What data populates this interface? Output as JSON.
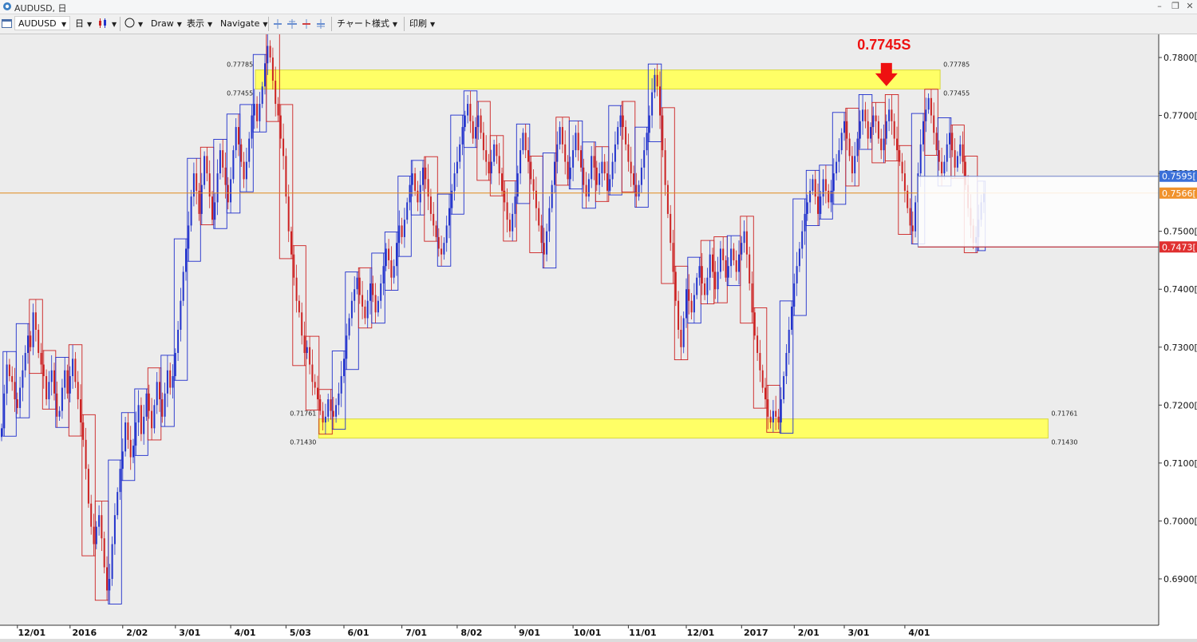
{
  "window": {
    "title": "AUDUSD, 日"
  },
  "toolbar": {
    "symbol": "AUDUSD",
    "timeframe": "日",
    "draw_label": "Draw",
    "view_label": "表示",
    "navigate_label": "Navigate",
    "chart_style_label": "チャート様式",
    "print_label": "印刷"
  },
  "chart_data": {
    "type": "candlestick",
    "symbol": "AUDUSD",
    "ylim": [
      0.682,
      0.784
    ],
    "y_ticks": [
      "0.6900[0",
      "0.7000[0",
      "0.7100[0",
      "0.7200[0",
      "0.7300[0",
      "0.7400[0",
      "0.7500[0",
      "0.7600[0",
      "0.7700[0",
      "0.7800[0"
    ],
    "y_tick_values": [
      0.69,
      0.7,
      0.71,
      0.72,
      0.73,
      0.74,
      0.75,
      0.76,
      0.77,
      0.78
    ],
    "x_labels": [
      "12/01",
      "2016",
      "2/02",
      "3/01",
      "4/01",
      "5/03",
      "6/01",
      "7/01",
      "8/02",
      "9/01",
      "10/01",
      "11/01",
      "12/01",
      "2017",
      "2/01",
      "3/01",
      "4/01"
    ],
    "x_label_index": [
      6,
      26,
      46,
      66,
      87,
      108,
      130,
      152,
      173,
      195,
      217,
      238,
      260,
      281,
      301,
      320,
      343
    ],
    "grid": false,
    "colors": {
      "up": "#2233cc",
      "down": "#cc2222",
      "current_line": "#e08a1c",
      "zone": "#ffff66",
      "arrow": "#ee1111"
    },
    "zones": [
      {
        "top": 0.77785,
        "bottom": 0.77455,
        "start": 97,
        "end": 357,
        "top_label": "0.77785",
        "bottom_label": "0.77455",
        "right_top_label": "0.77785",
        "right_bottom_label": "0.77455"
      },
      {
        "top": 0.71761,
        "bottom": 0.7143,
        "start": 121,
        "end": 398,
        "top_label": "0.71761",
        "bottom_label": "0.71430",
        "right_top_label": "0.71761",
        "right_bottom_label": "0.71430"
      }
    ],
    "annotation": {
      "text": "0.7745S",
      "index": 336,
      "price": 0.7745
    },
    "price_markers": [
      {
        "label": "0.7595[",
        "value": 0.7595,
        "color": "#3a6fd8"
      },
      {
        "label": "0.7566[",
        "value": 0.7566,
        "color": "#f0922c"
      },
      {
        "label": "0.7473[",
        "value": 0.7473,
        "color": "#e03030"
      }
    ],
    "current_price": 0.7566,
    "range_box": {
      "top": 0.7595,
      "bottom": 0.7473,
      "start": 348
    },
    "closes": [
      0.716,
      0.722,
      0.727,
      0.725,
      0.724,
      0.721,
      0.7195,
      0.723,
      0.726,
      0.729,
      0.732,
      0.73,
      0.736,
      0.733,
      0.729,
      0.727,
      0.725,
      0.721,
      0.724,
      0.726,
      0.722,
      0.718,
      0.719,
      0.723,
      0.726,
      0.722,
      0.725,
      0.728,
      0.724,
      0.721,
      0.717,
      0.714,
      0.709,
      0.703,
      0.699,
      0.696,
      0.699,
      0.701,
      0.697,
      0.692,
      0.688,
      0.69,
      0.696,
      0.701,
      0.705,
      0.709,
      0.712,
      0.717,
      0.714,
      0.711,
      0.713,
      0.717,
      0.72,
      0.715,
      0.718,
      0.722,
      0.719,
      0.716,
      0.72,
      0.724,
      0.721,
      0.718,
      0.722,
      0.726,
      0.723,
      0.725,
      0.729,
      0.733,
      0.738,
      0.743,
      0.747,
      0.751,
      0.756,
      0.76,
      0.757,
      0.753,
      0.758,
      0.763,
      0.76,
      0.756,
      0.752,
      0.755,
      0.76,
      0.764,
      0.761,
      0.758,
      0.755,
      0.759,
      0.764,
      0.768,
      0.765,
      0.762,
      0.759,
      0.762,
      0.766,
      0.77,
      0.772,
      0.769,
      0.772,
      0.775,
      0.779,
      0.782,
      0.78,
      0.776,
      0.772,
      0.77,
      0.766,
      0.763,
      0.756,
      0.75,
      0.746,
      0.742,
      0.738,
      0.736,
      0.732,
      0.729,
      0.73,
      0.727,
      0.724,
      0.723,
      0.721,
      0.719,
      0.717,
      0.718,
      0.721,
      0.719,
      0.718,
      0.72,
      0.722,
      0.725,
      0.728,
      0.732,
      0.735,
      0.738,
      0.74,
      0.742,
      0.739,
      0.737,
      0.735,
      0.738,
      0.741,
      0.739,
      0.736,
      0.738,
      0.741,
      0.744,
      0.747,
      0.745,
      0.742,
      0.744,
      0.748,
      0.751,
      0.749,
      0.752,
      0.755,
      0.758,
      0.76,
      0.757,
      0.755,
      0.758,
      0.761,
      0.759,
      0.756,
      0.753,
      0.751,
      0.749,
      0.747,
      0.746,
      0.748,
      0.751,
      0.754,
      0.757,
      0.76,
      0.762,
      0.765,
      0.768,
      0.77,
      0.772,
      0.769,
      0.766,
      0.768,
      0.77,
      0.767,
      0.764,
      0.762,
      0.76,
      0.762,
      0.765,
      0.763,
      0.76,
      0.757,
      0.755,
      0.752,
      0.75,
      0.753,
      0.756,
      0.76,
      0.764,
      0.767,
      0.764,
      0.762,
      0.759,
      0.757,
      0.754,
      0.751,
      0.748,
      0.746,
      0.75,
      0.754,
      0.758,
      0.762,
      0.765,
      0.768,
      0.765,
      0.762,
      0.759,
      0.761,
      0.764,
      0.767,
      0.764,
      0.761,
      0.758,
      0.756,
      0.759,
      0.763,
      0.761,
      0.758,
      0.76,
      0.762,
      0.76,
      0.757,
      0.759,
      0.762,
      0.765,
      0.768,
      0.77,
      0.768,
      0.765,
      0.762,
      0.76,
      0.758,
      0.756,
      0.758,
      0.761,
      0.764,
      0.767,
      0.77,
      0.774,
      0.777,
      0.775,
      0.77,
      0.764,
      0.758,
      0.753,
      0.748,
      0.743,
      0.738,
      0.733,
      0.73,
      0.735,
      0.74,
      0.738,
      0.736,
      0.739,
      0.742,
      0.744,
      0.741,
      0.739,
      0.742,
      0.746,
      0.743,
      0.74,
      0.743,
      0.747,
      0.745,
      0.742,
      0.744,
      0.747,
      0.745,
      0.743,
      0.746,
      0.748,
      0.75,
      0.746,
      0.741,
      0.736,
      0.732,
      0.729,
      0.726,
      0.723,
      0.721,
      0.718,
      0.717,
      0.719,
      0.718,
      0.717,
      0.721,
      0.725,
      0.729,
      0.733,
      0.737,
      0.741,
      0.744,
      0.747,
      0.75,
      0.753,
      0.755,
      0.757,
      0.759,
      0.756,
      0.753,
      0.756,
      0.759,
      0.757,
      0.755,
      0.757,
      0.76,
      0.762,
      0.764,
      0.767,
      0.769,
      0.766,
      0.763,
      0.76,
      0.763,
      0.766,
      0.769,
      0.771,
      0.769,
      0.766,
      0.768,
      0.77,
      0.769,
      0.766,
      0.764,
      0.766,
      0.769,
      0.771,
      0.769,
      0.766,
      0.764,
      0.762,
      0.76,
      0.757,
      0.754,
      0.751,
      0.75,
      0.755,
      0.76,
      0.765,
      0.769,
      0.771,
      0.773,
      0.77,
      0.767,
      0.764,
      0.762,
      0.76,
      0.762,
      0.765,
      0.767,
      0.764,
      0.761,
      0.763,
      0.765,
      0.762,
      0.758,
      0.754,
      0.751,
      0.748,
      0.749,
      0.752,
      0.755,
      0.7566
    ]
  }
}
